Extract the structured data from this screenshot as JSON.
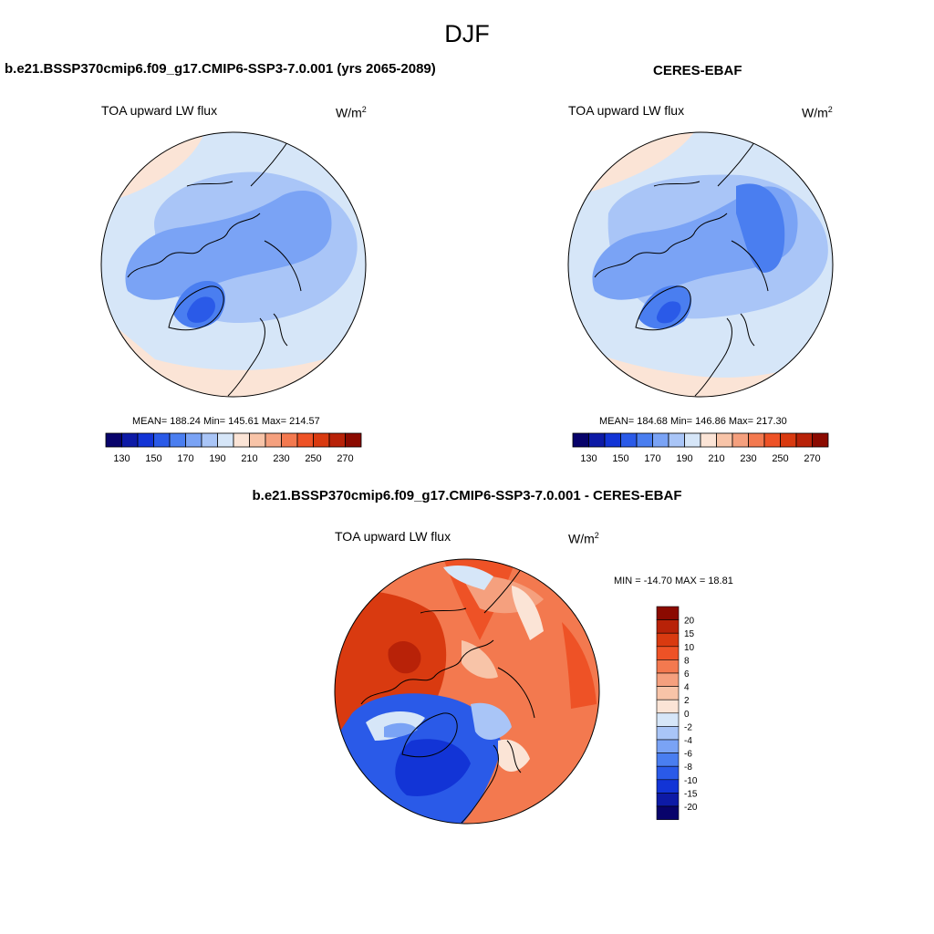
{
  "main_title": "DJF",
  "panels": [
    {
      "title": "b.e21.BSSP370cmip6.f09_g17.CMIP6-SSP3-7.0.001 (yrs 2065-2089)",
      "variable": "TOA upward LW flux",
      "units_base": "W/m",
      "units_exp": "2",
      "stats": "MEAN= 188.24  Min= 145.61  Max= 214.57"
    },
    {
      "title": "CERES-EBAF",
      "variable": "TOA upward LW flux",
      "units_base": "W/m",
      "units_exp": "2",
      "stats": "MEAN= 184.68  Min= 146.86  Max= 217.30"
    },
    {
      "title": "b.e21.BSSP370cmip6.f09_g17.CMIP6-SSP3-7.0.001 - CERES-EBAF",
      "variable": "TOA upward LW flux",
      "units_base": "W/m",
      "units_exp": "2",
      "stats": "MIN = -14.70 MAX =  18.81"
    }
  ],
  "colorbar_abs": {
    "colors": [
      "#08036b",
      "#0d1aa6",
      "#1234d6",
      "#2a5ae8",
      "#4a7ef0",
      "#7aa3f5",
      "#a9c5f7",
      "#d6e6f8",
      "#fbe4d6",
      "#f8c4a8",
      "#f5a07e",
      "#f3794f",
      "#ee5226",
      "#d93a10",
      "#b82208",
      "#8b0a00"
    ],
    "tick_labels": [
      "130",
      "150",
      "170",
      "190",
      "210",
      "230",
      "250",
      "270"
    ]
  },
  "colorbar_diff": {
    "colors": [
      "#08036b",
      "#0d1aa6",
      "#1234d6",
      "#2a5ae8",
      "#4a7ef0",
      "#7aa3f5",
      "#a9c5f7",
      "#d6e6f8",
      "#fbe4d6",
      "#f8c4a8",
      "#f5a07e",
      "#f3794f",
      "#ee5226",
      "#d93a10",
      "#b82208",
      "#8b0a00"
    ],
    "tick_labels": [
      "-20",
      "-15",
      "-10",
      "-8",
      "-6",
      "-4",
      "-2",
      "0",
      "2",
      "4",
      "6",
      "8",
      "10",
      "15",
      "20"
    ]
  }
}
